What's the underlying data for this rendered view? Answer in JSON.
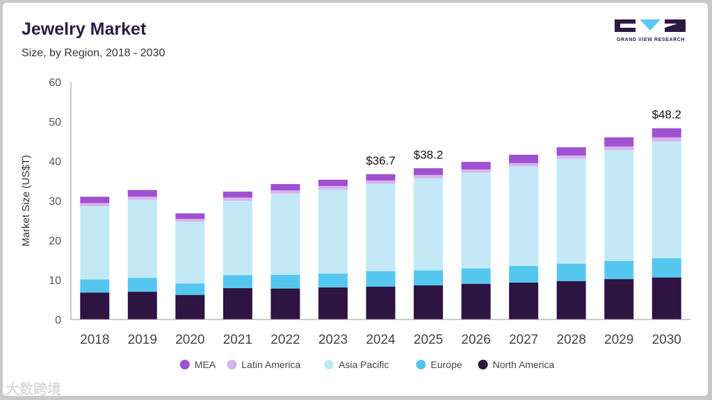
{
  "header": {
    "title": "Jewelry Market",
    "subtitle": "Size, by Region, 2018 - 2030"
  },
  "logo": {
    "text": "GRAND VIEW RESEARCH",
    "color": "#2b1a45",
    "accent": "#5bc8f0"
  },
  "watermark": {
    "text": "大数跨境"
  },
  "chart_data": {
    "type": "bar",
    "stacked": true,
    "ylabel": "Market Size (US$T)",
    "ylim": [
      0,
      60
    ],
    "yticks": [
      0,
      10,
      20,
      30,
      40,
      50,
      60
    ],
    "grid": false,
    "legend_position": "bottom",
    "categories": [
      "2018",
      "2019",
      "2020",
      "2021",
      "2022",
      "2023",
      "2024",
      "2025",
      "2026",
      "2027",
      "2028",
      "2029",
      "2030"
    ],
    "series": [
      {
        "name": "North America",
        "color": "#2e1442",
        "values": [
          6.8,
          7.0,
          6.2,
          7.9,
          7.8,
          8.1,
          8.3,
          8.6,
          9.0,
          9.3,
          9.7,
          10.2,
          10.6
        ]
      },
      {
        "name": "Europe",
        "color": "#55c7ef",
        "values": [
          3.3,
          3.5,
          2.9,
          3.3,
          3.5,
          3.5,
          3.9,
          3.8,
          3.9,
          4.2,
          4.4,
          4.6,
          4.9
        ]
      },
      {
        "name": "Asia Pacific",
        "color": "#c3e9f7",
        "values": [
          18.5,
          19.7,
          15.6,
          18.8,
          20.5,
          21.2,
          22.1,
          23.3,
          24.2,
          25.2,
          26.5,
          28.0,
          29.5
        ]
      },
      {
        "name": "Latin America",
        "color": "#d9b2ec",
        "values": [
          0.8,
          0.8,
          0.7,
          0.8,
          0.8,
          0.9,
          0.8,
          0.8,
          0.8,
          0.8,
          0.8,
          0.9,
          1.0
        ]
      },
      {
        "name": "MEA",
        "color": "#a050d2",
        "values": [
          1.6,
          1.7,
          1.4,
          1.5,
          1.6,
          1.6,
          1.6,
          1.7,
          1.9,
          2.1,
          2.1,
          2.3,
          2.3
        ]
      }
    ],
    "legend_order": [
      "MEA",
      "Latin America",
      "Asia Pacific",
      "Europe",
      "North America"
    ],
    "annotations": [
      {
        "category": "2024",
        "text": "$36.7"
      },
      {
        "category": "2025",
        "text": "$38.2"
      },
      {
        "category": "2030",
        "text": "$48.2"
      }
    ]
  }
}
